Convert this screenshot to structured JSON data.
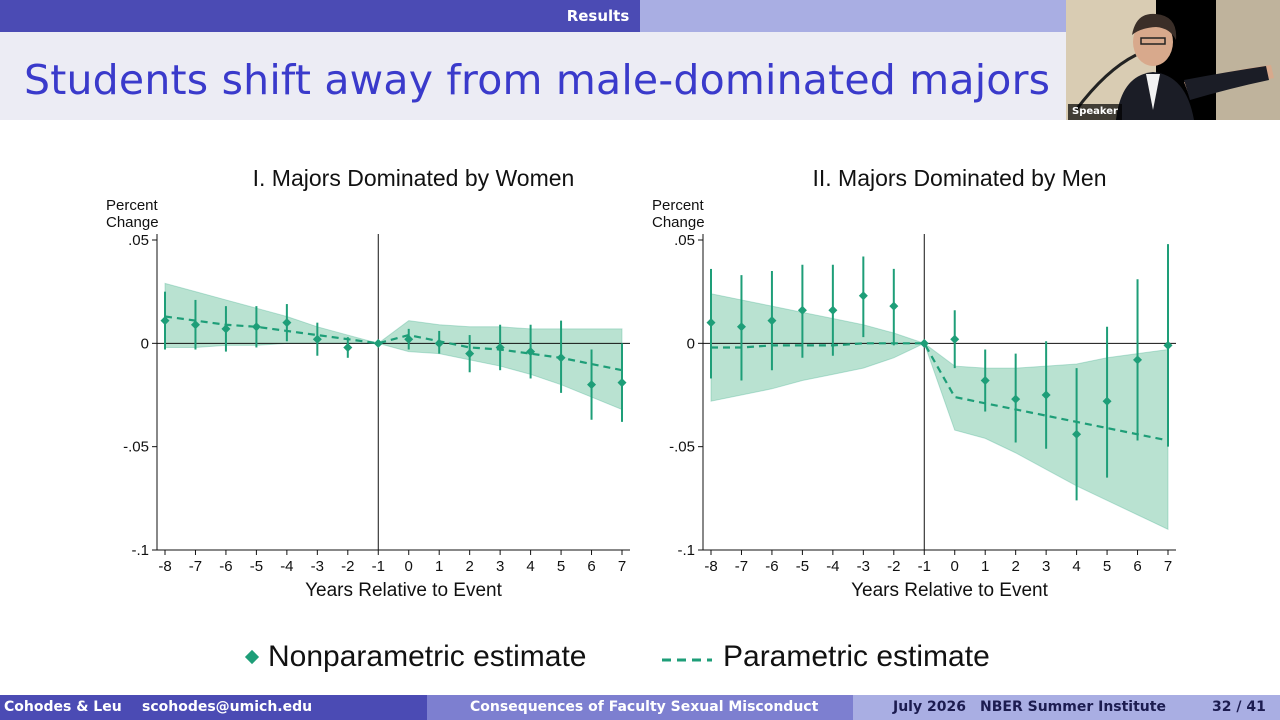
{
  "nav": {
    "section": "Results"
  },
  "frame": {
    "title": "Students shift away from male-dominated majors (rece"
  },
  "speaker": {
    "label": "Speaker"
  },
  "legend": {
    "nonparametric": "Nonparametric estimate",
    "parametric": "Parametric estimate"
  },
  "footer": {
    "authors": "Cohodes & Leu",
    "email": "scohodes@umich.edu",
    "talk_title": "Consequences of Faculty Sexual Misconduct",
    "date": "July 2026",
    "venue": "NBER Summer Institute",
    "page": "32 / 41"
  },
  "colors": {
    "accent": "#1e9e78",
    "band": "#a8dcc6",
    "nav": "#4b4bb4",
    "title": "#3a3acb"
  },
  "chart_data": [
    {
      "type": "scatter",
      "title": "I. Majors Dominated by Women",
      "ylabel": "Percent Change",
      "xlabel": "Years Relative to Event",
      "x": [
        -8,
        -7,
        -6,
        -5,
        -4,
        -3,
        -2,
        -1,
        0,
        1,
        2,
        3,
        4,
        5,
        6,
        7
      ],
      "ylim": [
        -0.1,
        0.05
      ],
      "yticks": [
        0.05,
        0,
        -0.05,
        -0.1
      ],
      "ytick_labels": [
        ".05",
        "0",
        "-.05",
        "-.1"
      ],
      "vline_x": -1,
      "nonparametric": {
        "estimate": [
          0.011,
          0.009,
          0.007,
          0.008,
          0.01,
          0.002,
          -0.002,
          0,
          0.002,
          0.0,
          -0.005,
          -0.002,
          -0.004,
          -0.007,
          -0.02,
          -0.019
        ],
        "ci_low": [
          -0.003,
          -0.003,
          -0.004,
          -0.002,
          0.001,
          -0.006,
          -0.007,
          0,
          -0.003,
          -0.005,
          -0.014,
          -0.013,
          -0.017,
          -0.024,
          -0.037,
          -0.038
        ],
        "ci_high": [
          0.025,
          0.021,
          0.018,
          0.018,
          0.019,
          0.01,
          0.003,
          0,
          0.007,
          0.006,
          0.004,
          0.009,
          0.009,
          0.011,
          -0.003,
          0.0
        ]
      },
      "parametric": {
        "estimate": [
          0.013,
          0.011,
          0.009,
          0.008,
          0.006,
          0.004,
          0.002,
          0,
          0.004,
          0.001,
          -0.002,
          -0.003,
          -0.005,
          -0.007,
          -0.01,
          -0.013
        ],
        "ci_low": [
          -0.002,
          -0.002,
          -0.001,
          -0.001,
          0.0,
          0.0,
          0.0,
          0,
          -0.004,
          -0.005,
          -0.008,
          -0.011,
          -0.015,
          -0.02,
          -0.026,
          -0.032
        ],
        "ci_high": [
          0.029,
          0.025,
          0.021,
          0.017,
          0.013,
          0.008,
          0.004,
          0,
          0.011,
          0.009,
          0.008,
          0.008,
          0.007,
          0.007,
          0.007,
          0.007
        ]
      },
      "grid": false,
      "legend": "bottom"
    },
    {
      "type": "scatter",
      "title": "II. Majors Dominated by Men",
      "ylabel": "Percent Change",
      "xlabel": "Years Relative to Event",
      "x": [
        -8,
        -7,
        -6,
        -5,
        -4,
        -3,
        -2,
        -1,
        0,
        1,
        2,
        3,
        4,
        5,
        6,
        7
      ],
      "ylim": [
        -0.1,
        0.05
      ],
      "yticks": [
        0.05,
        0,
        -0.05,
        -0.1
      ],
      "ytick_labels": [
        ".05",
        "0",
        "-.05",
        "-.1"
      ],
      "vline_x": -1,
      "nonparametric": {
        "estimate": [
          0.01,
          0.008,
          0.011,
          0.016,
          0.016,
          0.023,
          0.018,
          0,
          0.002,
          -0.018,
          -0.027,
          -0.025,
          -0.044,
          -0.028,
          -0.008,
          -0.001
        ],
        "ci_low": [
          -0.017,
          -0.018,
          -0.013,
          -0.007,
          -0.006,
          0.003,
          -0.001,
          0,
          -0.012,
          -0.033,
          -0.048,
          -0.051,
          -0.076,
          -0.065,
          -0.047,
          -0.05
        ],
        "ci_high": [
          0.036,
          0.033,
          0.035,
          0.038,
          0.038,
          0.042,
          0.036,
          0,
          0.016,
          -0.003,
          -0.005,
          0.001,
          -0.012,
          0.008,
          0.031,
          0.048
        ]
      },
      "parametric": {
        "estimate": [
          -0.002,
          -0.002,
          -0.001,
          -0.001,
          -0.001,
          0.0,
          0.0,
          0,
          -0.026,
          -0.029,
          -0.032,
          -0.035,
          -0.038,
          -0.041,
          -0.044,
          -0.047
        ],
        "ci_low": [
          -0.028,
          -0.025,
          -0.022,
          -0.018,
          -0.015,
          -0.012,
          -0.007,
          0,
          -0.042,
          -0.046,
          -0.053,
          -0.061,
          -0.069,
          -0.076,
          -0.083,
          -0.09
        ],
        "ci_high": [
          0.024,
          0.021,
          0.018,
          0.015,
          0.012,
          0.009,
          0.005,
          0,
          -0.011,
          -0.012,
          -0.012,
          -0.011,
          -0.01,
          -0.007,
          -0.005,
          -0.003
        ]
      },
      "grid": false,
      "legend": "bottom"
    }
  ]
}
